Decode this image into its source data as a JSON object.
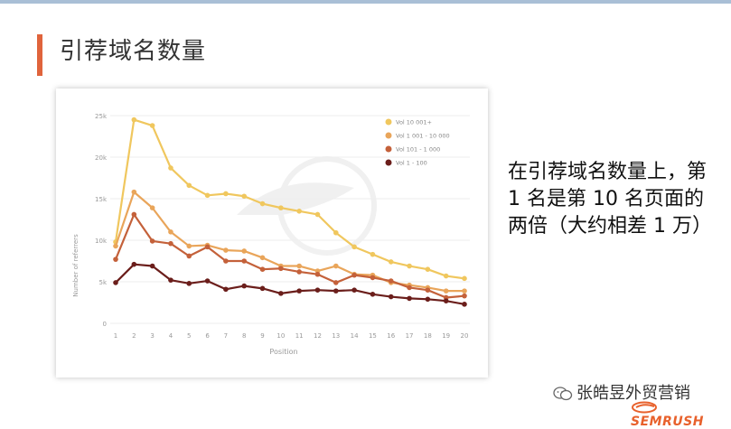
{
  "slide": {
    "title": "引荐域名数量",
    "note": "在引荐域名数量上，第 1 名是第 10 名页面的两倍（大约相差 1 万）"
  },
  "footer": {
    "account": "张皓昱外贸营销",
    "brand": "SEMRUSH",
    "wechat_icon": "wechat-icon",
    "brand_icon": "fire-icon"
  },
  "colors": {
    "accent": "#e0643c",
    "series": [
      "#f0c75e",
      "#e9a55a",
      "#c4613a",
      "#6b1e1b"
    ]
  },
  "chart_data": {
    "type": "line",
    "xlabel": "Position",
    "ylabel": "Number of referrers",
    "x": [
      1,
      2,
      3,
      4,
      5,
      6,
      7,
      8,
      9,
      10,
      11,
      12,
      13,
      14,
      15,
      16,
      17,
      18,
      19,
      20
    ],
    "ylim": [
      0,
      25000
    ],
    "yticks": [
      0,
      5000,
      10000,
      15000,
      20000,
      25000
    ],
    "ytick_labels": [
      "0",
      "5k",
      "10k",
      "15k",
      "20k",
      "25k"
    ],
    "grid": true,
    "legend_position": "top-right",
    "series": [
      {
        "name": "Vol 10 001+",
        "color": "#f0c75e",
        "values": [
          9800,
          24500,
          23800,
          18700,
          16600,
          15400,
          15600,
          15300,
          14400,
          13900,
          13500,
          13100,
          10900,
          9200,
          8300,
          7400,
          6900,
          6500,
          5700,
          5400
        ]
      },
      {
        "name": "Vol 1 001 - 10 000",
        "color": "#e9a55a",
        "values": [
          9300,
          15800,
          13900,
          11000,
          9300,
          9400,
          8800,
          8700,
          7900,
          6900,
          6900,
          6300,
          6900,
          5900,
          5800,
          4900,
          4600,
          4300,
          3900,
          3900
        ]
      },
      {
        "name": "Vol 101 - 1 000",
        "color": "#c4613a",
        "values": [
          7700,
          13100,
          9900,
          9600,
          8100,
          9200,
          7500,
          7500,
          6500,
          6600,
          6200,
          5900,
          4900,
          5800,
          5500,
          5100,
          4300,
          4000,
          3100,
          3300
        ]
      },
      {
        "name": "Vol 1 - 100",
        "color": "#6b1e1b",
        "values": [
          4900,
          7100,
          6900,
          5200,
          4800,
          5100,
          4100,
          4500,
          4200,
          3600,
          3900,
          4000,
          3900,
          4000,
          3500,
          3200,
          3000,
          2900,
          2700,
          2300
        ]
      }
    ]
  }
}
